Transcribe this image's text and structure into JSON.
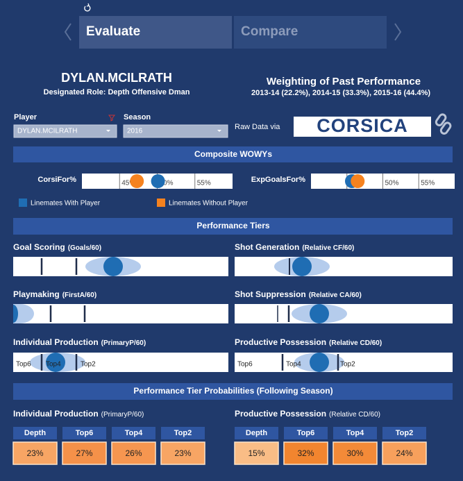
{
  "nav": {
    "tabs": [
      "Evaluate",
      "Compare"
    ]
  },
  "header": {
    "player_name": "DYLAN.MCILRATH",
    "role": "Designated Role: Depth Offensive Dman",
    "weighting_title": "Weighting of Past Performance",
    "weighting_detail": "2013-14 (22.2%), 2014-15 (33.3%), 2015-16 (44.4%)"
  },
  "filters": {
    "player_label": "Player",
    "player_value": "DYLAN.MCILRATH",
    "season_label": "Season",
    "season_value": "2016",
    "raw_data_label": "Raw Data via",
    "source_logo": "CORSICA"
  },
  "composite": {
    "title": "Composite WOWYs",
    "xlim": [
      40,
      60
    ],
    "xticks": [
      {
        "value": 45,
        "label": "45%"
      },
      {
        "value": 50,
        "label": "50%"
      },
      {
        "value": 55,
        "label": "55%"
      }
    ],
    "charts": [
      {
        "label": "CorsiFor%",
        "with_player": 50.1,
        "without_player": 47.3
      },
      {
        "label": "ExpGoalsFor%",
        "with_player": 45.7,
        "without_player": 46.5
      }
    ],
    "legend": [
      {
        "name": "Linemates With Player",
        "color": "#1f6db3"
      },
      {
        "name": "Linemates Without Player",
        "color": "#f5821f"
      }
    ]
  },
  "tiers": {
    "title": "Performance Tiers",
    "panels": [
      {
        "title": "Goal Scoring",
        "metric": "(Goals/60)"
      },
      {
        "title": "Shot Generation",
        "metric": "(Relative CF/60)"
      },
      {
        "title": "Playmaking",
        "metric": "(FirstA/60)"
      },
      {
        "title": "Shot Suppression",
        "metric": "(Relative CA/60)"
      },
      {
        "title": "Individual Production",
        "metric": "(PrimaryP/60)",
        "labels": [
          "Top6",
          "Top4",
          "Top2"
        ]
      },
      {
        "title": "Productive Possession",
        "metric": "(Relative CD/60)",
        "labels": [
          "Top6",
          "Top4",
          "Top2"
        ]
      }
    ]
  },
  "probabilities": {
    "title": "Performance Tier Probabilities (Following Season)",
    "tables": [
      {
        "title": "Individual Production",
        "metric": "(PrimaryP/60)",
        "columns": [
          "Depth",
          "Top6",
          "Top4",
          "Top2"
        ],
        "values": [
          "23%",
          "27%",
          "26%",
          "23%"
        ],
        "colors": [
          "#f7a564",
          "#f59149",
          "#f69650",
          "#f7a564"
        ]
      },
      {
        "title": "Productive Possession",
        "metric": "(Relative CD/60)",
        "columns": [
          "Depth",
          "Top6",
          "Top4",
          "Top2"
        ],
        "values": [
          "15%",
          "32%",
          "30%",
          "24%"
        ],
        "colors": [
          "#f9bd86",
          "#f2852f",
          "#f38a38",
          "#f7a05c"
        ]
      }
    ]
  }
}
